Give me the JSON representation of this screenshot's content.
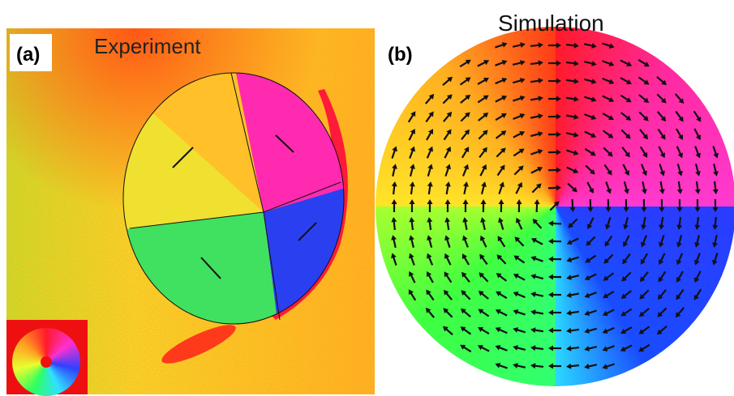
{
  "panels": [
    {
      "label": "(a)",
      "title": "Experiment"
    },
    {
      "label": "(b)",
      "title": "Simulation"
    }
  ]
}
